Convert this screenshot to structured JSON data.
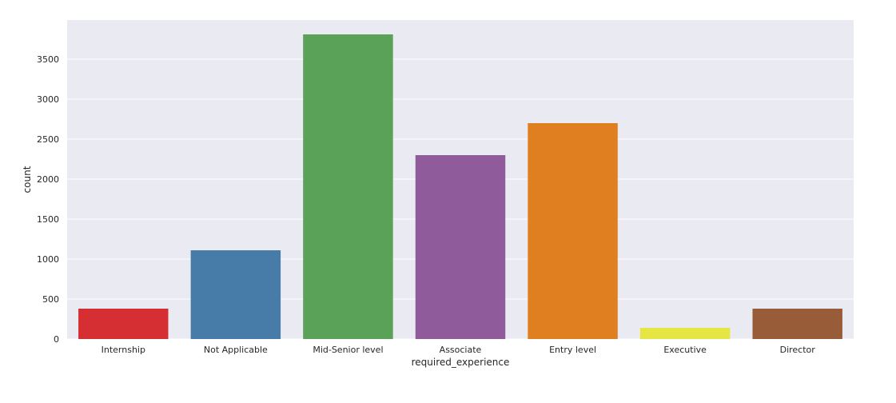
{
  "chart_data": {
    "type": "bar",
    "title": "",
    "xlabel": "required_experience",
    "ylabel": "count",
    "categories": [
      "Internship",
      "Not Applicable",
      "Mid-Senior level",
      "Associate",
      "Entry level",
      "Executive",
      "Director"
    ],
    "values": [
      380,
      1110,
      3810,
      2300,
      2700,
      140,
      380
    ],
    "colors": [
      "#d62f33",
      "#477ca8",
      "#59a257",
      "#8f5b9a",
      "#e07f20",
      "#e5e544",
      "#985d38"
    ],
    "ylim": [
      0,
      3990
    ],
    "yticks": [
      0,
      500,
      1000,
      1500,
      2000,
      2500,
      3000,
      3500
    ],
    "grid": true,
    "background": "#eaeaf2",
    "grid_color": "#ffffff"
  }
}
